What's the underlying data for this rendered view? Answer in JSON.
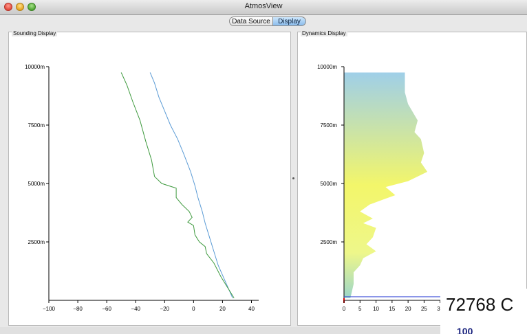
{
  "window": {
    "title": "AtmosView"
  },
  "tabs": [
    {
      "label": "Data Source",
      "selected": false
    },
    {
      "label": "Display",
      "selected": true
    }
  ],
  "panels": {
    "sounding": {
      "title": "Sounding Display"
    },
    "dynamics": {
      "title": "Dynamics Display"
    }
  },
  "overlay": {
    "text": "72768 C",
    "sub": "100 "
  },
  "colors": {
    "temperature_line": "#5b9bd5",
    "dewpoint_line": "#3f9a3f",
    "dynamics_top": "#9fcfe8",
    "dynamics_mid": "#f3f66a",
    "dynamics_bottom": "#9dd6c8",
    "tab_selected": "#a7d0f5"
  },
  "chart_data": [
    {
      "type": "line",
      "y_tick_labels": [
        "10000m",
        "7500m",
        "5000m",
        "2500m"
      ],
      "x_tick_labels": [
        "−100",
        "−80",
        "−60",
        "−40",
        "−20",
        "0",
        "20",
        "40"
      ],
      "xlim": [
        -100,
        45
      ],
      "ylim": [
        0,
        10000
      ],
      "series": [
        {
          "points": [
            [
              -30,
              9750
            ],
            [
              -27,
              9300
            ],
            [
              -24,
              8700
            ],
            [
              -20,
              8100
            ],
            [
              -16,
              7500
            ],
            [
              -11,
              6900
            ],
            [
              -7,
              6300
            ],
            [
              -2,
              5500
            ],
            [
              1,
              4900
            ],
            [
              3,
              4400
            ],
            [
              6,
              3800
            ],
            [
              8,
              3300
            ],
            [
              11,
              2700
            ],
            [
              14,
              2100
            ],
            [
              17,
              1500
            ],
            [
              22,
              800
            ],
            [
              27,
              100
            ]
          ]
        },
        {
          "points": [
            [
              -50,
              9750
            ],
            [
              -46,
              9200
            ],
            [
              -42,
              8500
            ],
            [
              -37,
              7700
            ],
            [
              -33,
              6800
            ],
            [
              -29,
              6000
            ],
            [
              -27,
              5300
            ],
            [
              -22,
              5000
            ],
            [
              -12,
              4800
            ],
            [
              -12,
              4400
            ],
            [
              -8,
              4100
            ],
            [
              -3,
              3800
            ],
            [
              -1,
              3550
            ],
            [
              -4,
              3350
            ],
            [
              0,
              3200
            ],
            [
              1,
              2800
            ],
            [
              4,
              2500
            ],
            [
              8,
              2300
            ],
            [
              9,
              2000
            ],
            [
              14,
              1600
            ],
            [
              19,
              1000
            ],
            [
              28,
              100
            ]
          ]
        }
      ]
    },
    {
      "type": "area",
      "y_tick_labels": [
        "10000m",
        "7500m",
        "5000m",
        "2500m"
      ],
      "x_tick_labels": [
        "0",
        "5",
        "10",
        "15",
        "20",
        "25",
        "30"
      ],
      "xlim": [
        0,
        35
      ],
      "ylim": [
        0,
        10000
      ],
      "points": [
        [
          19,
          9750
        ],
        [
          19,
          8900
        ],
        [
          20,
          8400
        ],
        [
          23,
          7700
        ],
        [
          22,
          7200
        ],
        [
          24,
          6900
        ],
        [
          25,
          6300
        ],
        [
          24,
          5900
        ],
        [
          26,
          5500
        ],
        [
          20,
          5100
        ],
        [
          13,
          4850
        ],
        [
          16,
          4500
        ],
        [
          12,
          4300
        ],
        [
          8,
          4100
        ],
        [
          5,
          3800
        ],
        [
          9,
          3500
        ],
        [
          6,
          3300
        ],
        [
          10,
          3100
        ],
        [
          9,
          2700
        ],
        [
          7,
          2400
        ],
        [
          10,
          2100
        ],
        [
          6,
          1800
        ],
        [
          5,
          1500
        ],
        [
          3,
          1200
        ],
        [
          3,
          700
        ],
        [
          2,
          100
        ]
      ],
      "baseline": [
        [
          0,
          150
        ],
        [
          33,
          150
        ]
      ],
      "marker": [
        0,
        0
      ]
    }
  ]
}
